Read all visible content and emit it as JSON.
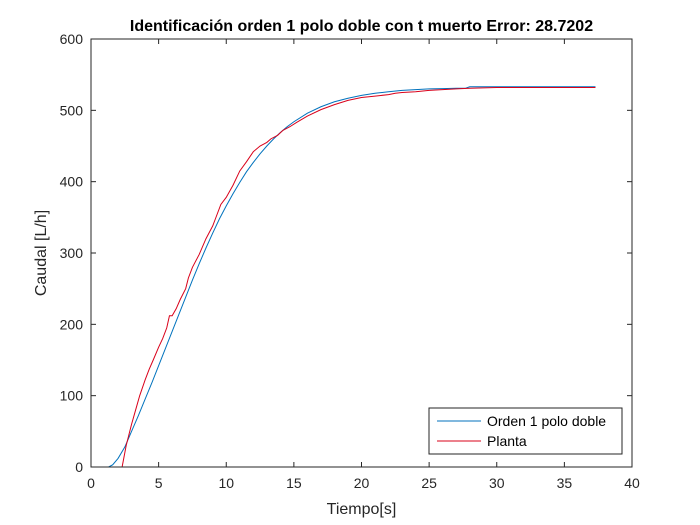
{
  "chart_data": {
    "type": "line",
    "title": "Identificación orden 1 polo doble con t muerto Error: 28.7202",
    "xlabel": "Tiempo[s]",
    "ylabel": "Caudal [L/h]",
    "xlim": [
      0,
      40
    ],
    "ylim": [
      0,
      600
    ],
    "xticks": [
      0,
      5,
      10,
      15,
      20,
      25,
      30,
      35,
      40
    ],
    "yticks": [
      0,
      100,
      200,
      300,
      400,
      500,
      600
    ],
    "grid": false,
    "legend_position": "bottom-right",
    "series": [
      {
        "name": "Orden 1 polo doble",
        "color": "#0072BD",
        "x": [
          0,
          1.3,
          1.6,
          2.0,
          2.5,
          3.0,
          3.5,
          4.0,
          4.5,
          5.0,
          5.5,
          6.0,
          6.5,
          7.0,
          7.5,
          8.0,
          8.5,
          9.0,
          9.5,
          10.0,
          10.5,
          11.0,
          11.5,
          12.0,
          12.5,
          13.0,
          13.5,
          14.0,
          14.5,
          15.0,
          16.0,
          17.0,
          18.0,
          19.0,
          20.0,
          21.0,
          22.0,
          23.0,
          24.0,
          25.0,
          26.0,
          27.0,
          27.7,
          28.0,
          30.0,
          32.0,
          34.0,
          36.0,
          37.3
        ],
        "y": [
          0,
          0,
          3,
          12,
          28,
          50,
          72,
          95,
          118,
          142,
          166,
          190,
          214,
          238,
          262,
          285,
          307,
          328,
          348,
          366,
          383,
          399,
          414,
          427,
          439,
          450,
          460,
          469,
          477,
          484,
          496,
          505,
          512,
          517,
          521,
          524,
          526,
          528,
          529,
          530,
          530.5,
          531,
          531,
          533,
          533,
          533,
          533,
          533,
          533
        ]
      },
      {
        "name": "Planta",
        "color": "#D9001A",
        "x": [
          0,
          2.3,
          2.4,
          2.6,
          2.8,
          3.0,
          3.3,
          3.6,
          4.0,
          4.3,
          4.6,
          5.0,
          5.3,
          5.6,
          5.8,
          6.0,
          6.3,
          6.6,
          7.0,
          7.2,
          7.5,
          8.0,
          8.5,
          9.0,
          9.2,
          9.6,
          10.0,
          10.5,
          11.0,
          11.5,
          12.0,
          12.5,
          13.0,
          13.3,
          13.8,
          14.2,
          14.7,
          15.2,
          16.0,
          17.0,
          18.0,
          19.0,
          20.0,
          21.0,
          22.0,
          22.5,
          23.0,
          24.0,
          25.0,
          26.0,
          27.0,
          28.0,
          30.0,
          32.0,
          34.0,
          36.0,
          37.3
        ],
        "y": [
          0,
          0,
          10,
          30,
          45,
          60,
          80,
          100,
          122,
          137,
          150,
          168,
          180,
          195,
          212,
          212,
          222,
          235,
          250,
          265,
          280,
          298,
          320,
          338,
          348,
          368,
          378,
          395,
          415,
          428,
          442,
          450,
          455,
          460,
          465,
          472,
          477,
          483,
          492,
          501,
          508,
          514,
          518,
          520,
          522,
          524,
          525,
          526,
          528,
          529,
          530,
          531,
          532,
          532,
          532,
          532,
          532
        ]
      }
    ]
  }
}
